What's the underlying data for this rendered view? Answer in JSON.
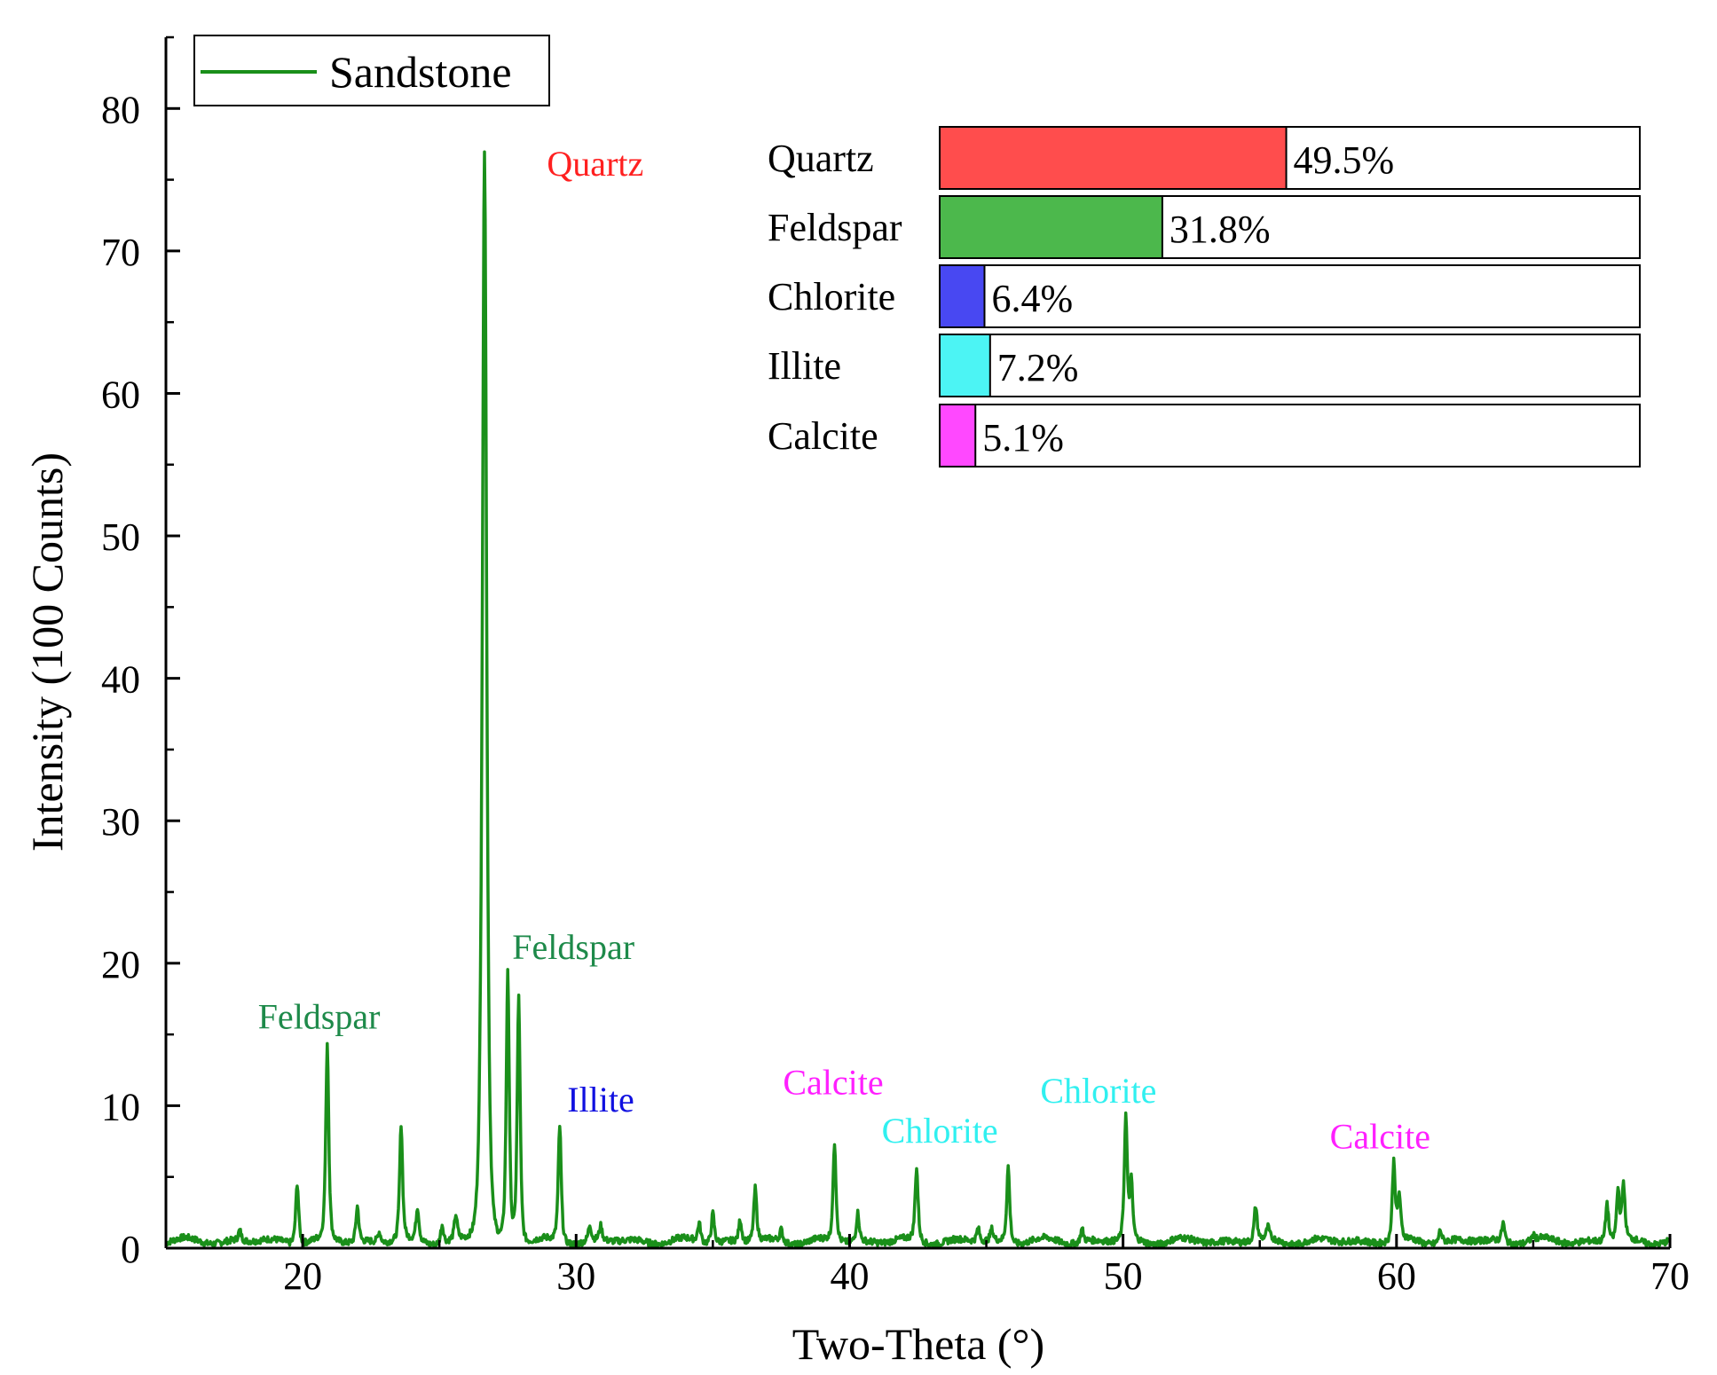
{
  "chart_data": {
    "type": "line",
    "xlabel": "Two-Theta (°)",
    "ylabel": "Intensity (100 Counts)",
    "xlim": [
      15,
      70
    ],
    "ylim": [
      0,
      85
    ],
    "x_ticks": [
      20,
      30,
      40,
      50,
      60,
      70
    ],
    "y_ticks": [
      0,
      10,
      20,
      30,
      40,
      50,
      60,
      70,
      80
    ],
    "grid": false,
    "legend": {
      "position": "top-left",
      "entries": [
        "Sandstone"
      ]
    },
    "series": [
      {
        "name": "Sandstone",
        "color": "#1a8f1a",
        "baseline": 0.5,
        "peaks": [
          {
            "x": 17.7,
            "y": 1.2
          },
          {
            "x": 19.8,
            "y": 4.8
          },
          {
            "x": 20.9,
            "y": 14.2
          },
          {
            "x": 22.0,
            "y": 3.0
          },
          {
            "x": 22.8,
            "y": 1.2
          },
          {
            "x": 23.6,
            "y": 8.6
          },
          {
            "x": 24.2,
            "y": 2.8
          },
          {
            "x": 25.1,
            "y": 1.8
          },
          {
            "x": 25.6,
            "y": 2.2
          },
          {
            "x": 26.65,
            "y": 77.2
          },
          {
            "x": 27.5,
            "y": 19.5
          },
          {
            "x": 27.9,
            "y": 17.8
          },
          {
            "x": 29.4,
            "y": 8.6
          },
          {
            "x": 30.5,
            "y": 1.6
          },
          {
            "x": 30.9,
            "y": 1.5
          },
          {
            "x": 34.5,
            "y": 1.8
          },
          {
            "x": 35.0,
            "y": 2.6
          },
          {
            "x": 36.0,
            "y": 2.0
          },
          {
            "x": 36.55,
            "y": 4.2
          },
          {
            "x": 37.5,
            "y": 1.3
          },
          {
            "x": 39.45,
            "y": 7.4
          },
          {
            "x": 40.3,
            "y": 2.5
          },
          {
            "x": 42.45,
            "y": 5.6
          },
          {
            "x": 44.7,
            "y": 1.4
          },
          {
            "x": 45.2,
            "y": 1.3
          },
          {
            "x": 45.8,
            "y": 5.8
          },
          {
            "x": 48.5,
            "y": 1.4
          },
          {
            "x": 50.1,
            "y": 9.1
          },
          {
            "x": 50.3,
            "y": 4.5
          },
          {
            "x": 54.85,
            "y": 2.9
          },
          {
            "x": 55.3,
            "y": 1.3
          },
          {
            "x": 59.9,
            "y": 6.0
          },
          {
            "x": 60.1,
            "y": 3.5
          },
          {
            "x": 61.6,
            "y": 1.4
          },
          {
            "x": 63.9,
            "y": 1.8
          },
          {
            "x": 65.0,
            "y": 0.8
          },
          {
            "x": 67.7,
            "y": 3.2
          },
          {
            "x": 68.1,
            "y": 4.0
          },
          {
            "x": 68.3,
            "y": 4.4
          }
        ]
      }
    ],
    "annotations": [
      {
        "text": "Quartz",
        "x": 30.7,
        "y": 75.3,
        "color": "#ff2020"
      },
      {
        "text": "Feldspar",
        "x": 29.9,
        "y": 20.3,
        "color": "#1e8a4a"
      },
      {
        "text": "Feldspar",
        "x": 20.6,
        "y": 15.4,
        "color": "#1e8a4a"
      },
      {
        "text": "Illite",
        "x": 30.9,
        "y": 9.6,
        "color": "#1010e0"
      },
      {
        "text": "Calcite",
        "x": 39.4,
        "y": 10.8,
        "color": "#ff20ff"
      },
      {
        "text": "Chlorite",
        "x": 43.3,
        "y": 7.4,
        "color": "#30f0f0"
      },
      {
        "text": "Chlorite",
        "x": 49.1,
        "y": 10.2,
        "color": "#30f0f0"
      },
      {
        "text": "Calcite",
        "x": 59.4,
        "y": 7.0,
        "color": "#ff20ff"
      }
    ],
    "composition": {
      "type": "bar",
      "orientation": "horizontal",
      "max_percent": 100,
      "items": [
        {
          "label": "Quartz",
          "percent": 49.5,
          "value_label": "49.5%",
          "color": "#ff4d4d"
        },
        {
          "label": "Feldspar",
          "percent": 31.8,
          "value_label": "31.8%",
          "color": "#4cb84c"
        },
        {
          "label": "Chlorite",
          "percent": 6.4,
          "value_label": "6.4%",
          "color": "#4848f2"
        },
        {
          "label": "Illite",
          "percent": 7.2,
          "value_label": "7.2%",
          "color": "#4cf4f4"
        },
        {
          "label": "Calcite",
          "percent": 5.1,
          "value_label": "5.1%",
          "color": "#ff48ff"
        }
      ]
    }
  }
}
